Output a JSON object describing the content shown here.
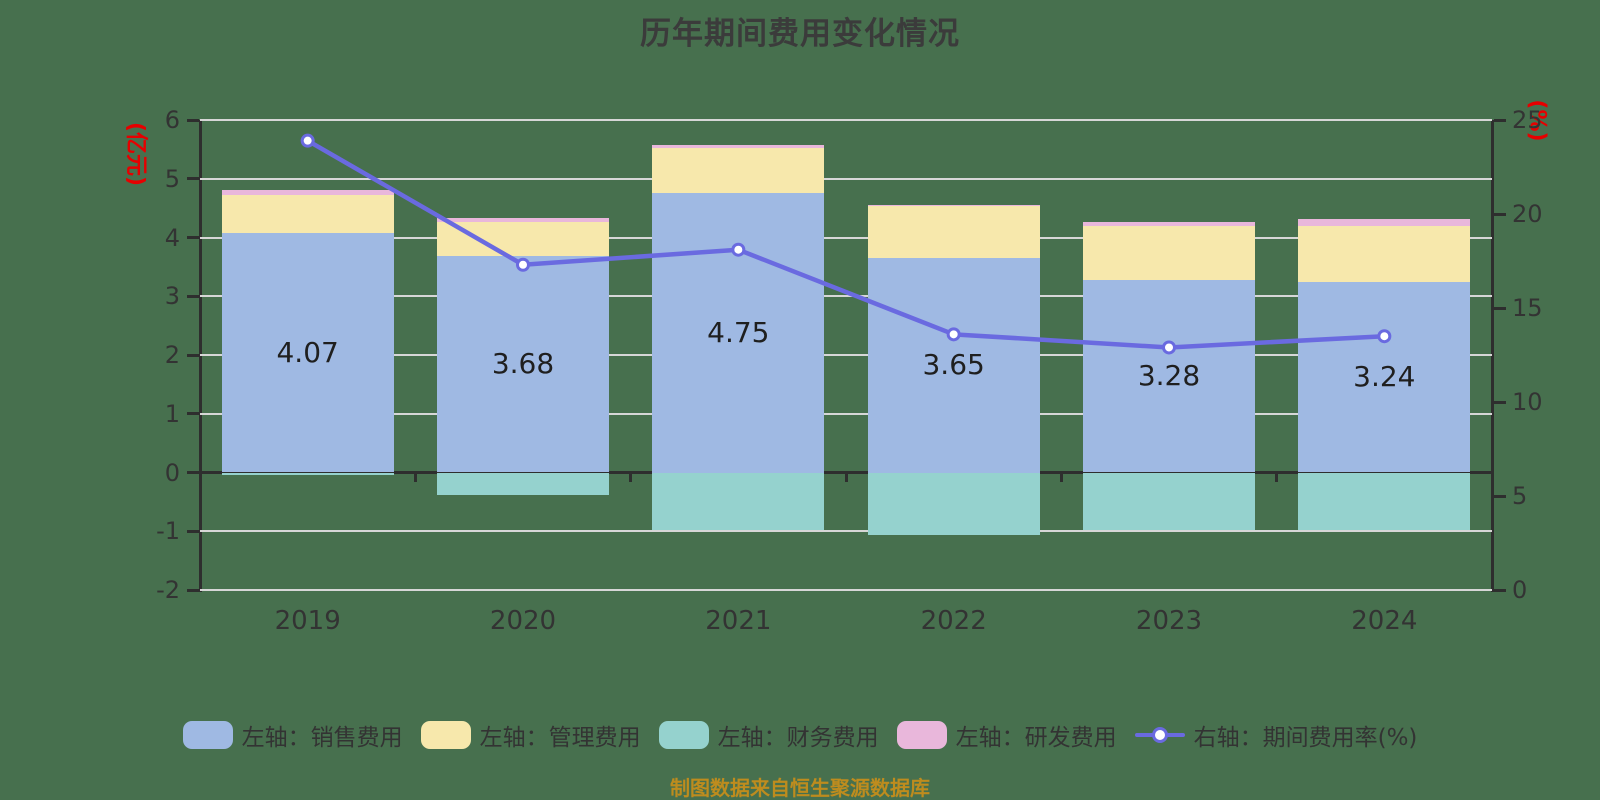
{
  "title": "历年期间费用变化情况",
  "footer": "制图数据来自恒生聚源数据库",
  "left_axis": {
    "unit": "(亿元)",
    "min": -2,
    "max": 6,
    "ticks": [
      6,
      5,
      4,
      3,
      2,
      1,
      0,
      -1,
      -2
    ]
  },
  "right_axis": {
    "unit": "(%)",
    "min": 0,
    "max": 25,
    "ticks": [
      25,
      20,
      15,
      10,
      5,
      0
    ]
  },
  "colors": {
    "background": "#47704E",
    "sales": "#9FB9E3",
    "admin": "#F7E8AC",
    "finance": "#95D2CE",
    "rnd": "#E9B7DB",
    "rate_line": "#6A6AE0",
    "grid": "#D7D7D7",
    "axis": "#2E2E2E",
    "text": "#333333",
    "unit_text": "#E60000",
    "footer_text": "#BE8C1E"
  },
  "legend": {
    "items": [
      {
        "id": "sales",
        "label": "左轴：销售费用",
        "type": "swatch",
        "color": "#9FB9E3"
      },
      {
        "id": "admin",
        "label": "左轴：管理费用",
        "type": "swatch",
        "color": "#F7E8AC"
      },
      {
        "id": "finance",
        "label": "左轴：财务费用",
        "type": "swatch",
        "color": "#95D2CE"
      },
      {
        "id": "rnd",
        "label": "左轴：研发费用",
        "type": "swatch",
        "color": "#E9B7DB"
      },
      {
        "id": "rate",
        "label": "右轴：期间费用率(%)",
        "type": "line",
        "color": "#6A6AE0"
      }
    ]
  },
  "chart_data": {
    "type": "bar",
    "subtype": "stacked-bar-with-line",
    "categories": [
      "2019",
      "2020",
      "2021",
      "2022",
      "2023",
      "2024"
    ],
    "series": [
      {
        "name": "左轴：销售费用",
        "axis": "left",
        "kind": "bar",
        "values": [
          4.07,
          3.68,
          4.75,
          3.65,
          3.28,
          3.24
        ]
      },
      {
        "name": "左轴：管理费用",
        "axis": "left",
        "kind": "bar",
        "values": [
          0.66,
          0.58,
          0.78,
          0.88,
          0.91,
          0.95
        ]
      },
      {
        "name": "左轴：研发费用",
        "axis": "left",
        "kind": "bar",
        "values": [
          0.08,
          0.08,
          0.05,
          0.03,
          0.07,
          0.12
        ]
      },
      {
        "name": "左轴：财务费用",
        "axis": "left",
        "kind": "bar",
        "values": [
          -0.05,
          -0.38,
          -0.98,
          -1.07,
          -0.98,
          -0.98
        ]
      },
      {
        "name": "右轴：期间费用率(%)",
        "axis": "right",
        "kind": "line",
        "values": [
          23.9,
          17.3,
          18.1,
          13.6,
          12.9,
          13.5
        ]
      }
    ],
    "bar_value_labels": {
      "series": "左轴：销售费用",
      "values": [
        "4.07",
        "3.68",
        "4.75",
        "3.65",
        "3.28",
        "3.24"
      ]
    },
    "left_ylim": [
      -2,
      6
    ],
    "right_ylim": [
      0,
      25
    ],
    "grid": true,
    "legend_position": "bottom",
    "title": "历年期间费用变化情况"
  }
}
